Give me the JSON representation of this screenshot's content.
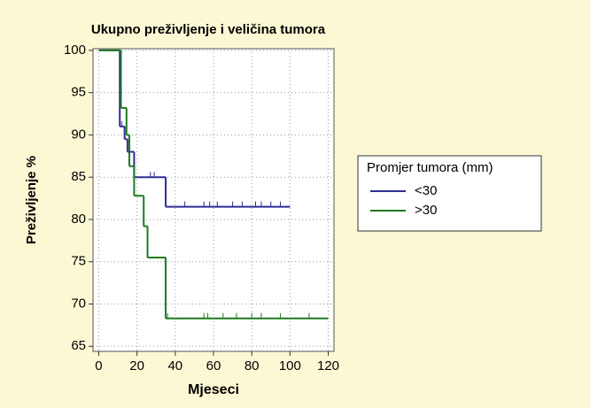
{
  "chart_data": {
    "type": "step",
    "title": "Ukupno preživljenje i veličina tumora",
    "xlabel": "Mjeseci",
    "ylabel": "Preživljenje %",
    "legend_title": "Promjer tumora (mm)",
    "legend": "right",
    "grid": true,
    "xlim": [
      -3,
      123
    ],
    "ylim": [
      64.4,
      100.2
    ],
    "xticks": [
      0,
      20,
      40,
      60,
      80,
      100,
      120
    ],
    "yticks": [
      65,
      70,
      75,
      80,
      85,
      90,
      95,
      100
    ],
    "series": [
      {
        "name": "<30",
        "color": "#2e2e94",
        "x": [
          0,
          11,
          13.5,
          15,
          18.5,
          35,
          100
        ],
        "values": [
          100,
          91,
          89.5,
          88,
          85,
          81.5,
          81.5
        ],
        "censored": [
          12,
          27,
          29,
          45,
          55,
          58,
          62,
          70,
          75,
          82,
          85,
          90,
          95
        ]
      },
      {
        "name": ">30",
        "color": "#1f7a1f",
        "x": [
          0,
          11.6,
          14.5,
          16,
          18.5,
          23.5,
          25.5,
          35,
          120
        ],
        "values": [
          100,
          93.2,
          90,
          86.3,
          82.8,
          79.2,
          75.5,
          68.3,
          68.3
        ],
        "censored": [
          36,
          55,
          57,
          65,
          72,
          80,
          85,
          95,
          110
        ]
      }
    ]
  }
}
